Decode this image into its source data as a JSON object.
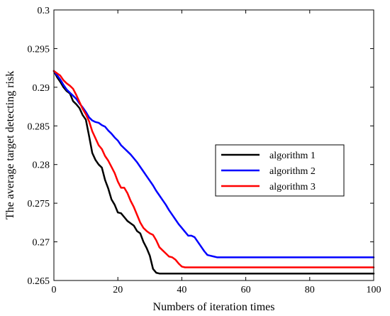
{
  "chart_data": {
    "type": "line",
    "title": "",
    "xlabel": "Numbers of iteration times",
    "ylabel": "The average target detecting risk",
    "xlim": [
      0,
      100
    ],
    "ylim": [
      0.265,
      0.3
    ],
    "xticks": [
      0,
      20,
      40,
      60,
      80,
      100
    ],
    "xtick_labels": [
      "0",
      "20",
      "40",
      "60",
      "80",
      "100"
    ],
    "yticks": [
      0.265,
      0.27,
      0.275,
      0.28,
      0.285,
      0.29,
      0.295,
      0.3
    ],
    "ytick_labels": [
      "0.265",
      "0.27",
      "0.275",
      "0.28",
      "0.285",
      "0.29",
      "0.295",
      "0.3"
    ],
    "grid": false,
    "legend_position": "center-right",
    "series": [
      {
        "name": "algorithm 1",
        "color": "#000000",
        "x": [
          0,
          1,
          2,
          3,
          4,
          5,
          6,
          7,
          8,
          9,
          10,
          11,
          12,
          13,
          14,
          15,
          16,
          17,
          18,
          19,
          20,
          21,
          22,
          23,
          24,
          25,
          26,
          27,
          28,
          29,
          30,
          31,
          32,
          33,
          34,
          35,
          100
        ],
        "y": [
          0.2921,
          0.2913,
          0.2907,
          0.29,
          0.2895,
          0.2892,
          0.2882,
          0.2878,
          0.2873,
          0.2864,
          0.2858,
          0.2837,
          0.2815,
          0.2806,
          0.28,
          0.2796,
          0.278,
          0.2769,
          0.2755,
          0.2748,
          0.2738,
          0.2737,
          0.2732,
          0.2727,
          0.2724,
          0.2721,
          0.2714,
          0.2711,
          0.27,
          0.2692,
          0.2682,
          0.2665,
          0.266,
          0.2659,
          0.2659,
          0.2659,
          0.2659
        ]
      },
      {
        "name": "algorithm 2",
        "color": "#0000ff",
        "x": [
          0,
          2,
          3,
          4,
          5,
          6,
          7,
          8,
          9,
          10,
          11,
          12,
          13,
          14,
          15,
          16,
          17,
          18,
          19,
          20,
          21,
          22,
          23,
          24,
          25,
          26,
          27,
          28,
          29,
          30,
          31,
          32,
          33,
          34,
          35,
          36,
          37,
          38,
          39,
          40,
          41,
          42,
          43,
          44,
          45,
          46,
          47,
          48,
          49,
          50,
          51,
          100
        ],
        "y": [
          0.2921,
          0.291,
          0.2903,
          0.2897,
          0.2893,
          0.2889,
          0.2885,
          0.2879,
          0.2874,
          0.2868,
          0.2861,
          0.2857,
          0.2855,
          0.2854,
          0.2851,
          0.2849,
          0.2844,
          0.284,
          0.2835,
          0.2831,
          0.2825,
          0.2821,
          0.2817,
          0.2813,
          0.2808,
          0.2803,
          0.2797,
          0.2791,
          0.2785,
          0.2779,
          0.2773,
          0.2766,
          0.276,
          0.2754,
          0.2748,
          0.2741,
          0.2735,
          0.2729,
          0.2723,
          0.2718,
          0.2713,
          0.2708,
          0.2708,
          0.2706,
          0.27,
          0.2694,
          0.2688,
          0.2683,
          0.2682,
          0.2681,
          0.268,
          0.268
        ]
      },
      {
        "name": "algorithm 3",
        "color": "#ff0000",
        "x": [
          0,
          1,
          2,
          3,
          4,
          5,
          6,
          7,
          8,
          9,
          10,
          11,
          12,
          13,
          14,
          15,
          16,
          17,
          18,
          19,
          20,
          21,
          22,
          23,
          24,
          25,
          26,
          27,
          28,
          29,
          30,
          31,
          32,
          33,
          34,
          35,
          36,
          37,
          38,
          39,
          40,
          41,
          42,
          100
        ],
        "y": [
          0.2921,
          0.2918,
          0.2915,
          0.2909,
          0.2905,
          0.2902,
          0.2898,
          0.289,
          0.2881,
          0.2872,
          0.2865,
          0.2856,
          0.2843,
          0.2834,
          0.2825,
          0.282,
          0.2811,
          0.2805,
          0.2797,
          0.2789,
          0.2778,
          0.277,
          0.277,
          0.2763,
          0.2753,
          0.2745,
          0.2735,
          0.2725,
          0.2718,
          0.2714,
          0.2711,
          0.2709,
          0.2702,
          0.2693,
          0.2689,
          0.2685,
          0.2681,
          0.268,
          0.2677,
          0.2672,
          0.2668,
          0.2667,
          0.2667,
          0.2667
        ]
      }
    ]
  }
}
